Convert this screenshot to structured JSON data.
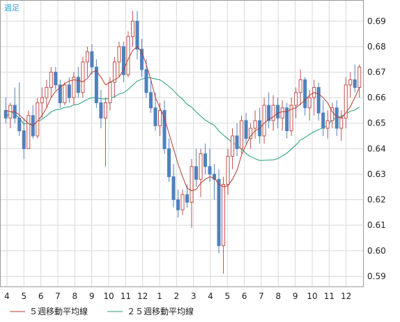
{
  "chart_data": {
    "type": "candlestick",
    "period_label": "週足",
    "y_ticks": [
      "0.69",
      "0.68",
      "0.67",
      "0.66",
      "0.65",
      "0.64",
      "0.63",
      "0.62",
      "0.61",
      "0.60",
      "0.59"
    ],
    "ylim": [
      0.586,
      0.698
    ],
    "x_ticks": [
      "4",
      "5",
      "6",
      "7",
      "8",
      "9",
      "10",
      "11",
      "12",
      "1",
      "2",
      "3",
      "4",
      "5",
      "6",
      "7",
      "8",
      "9",
      "10",
      "11",
      "12"
    ],
    "grid": true,
    "colors": {
      "up": "#c0504d",
      "down": "#4f81bd",
      "ma5": "#b8392f",
      "ma25": "#1f9e7a",
      "grid": "#d8d8d8",
      "axis": "#9a9a9a"
    },
    "legend": [
      {
        "label": "５週移動平均線",
        "color": "#b8392f"
      },
      {
        "label": "２５週移動平均線",
        "color": "#1f9e7a"
      }
    ],
    "candles": [
      [
        0.655,
        0.66,
        0.65,
        0.652
      ],
      [
        0.652,
        0.658,
        0.648,
        0.657
      ],
      [
        0.657,
        0.664,
        0.65,
        0.652
      ],
      [
        0.652,
        0.666,
        0.645,
        0.647
      ],
      [
        0.647,
        0.652,
        0.636,
        0.64
      ],
      [
        0.64,
        0.655,
        0.64,
        0.653
      ],
      [
        0.653,
        0.657,
        0.644,
        0.645
      ],
      [
        0.645,
        0.66,
        0.644,
        0.658
      ],
      [
        0.658,
        0.664,
        0.652,
        0.66
      ],
      [
        0.66,
        0.667,
        0.656,
        0.664
      ],
      [
        0.664,
        0.672,
        0.66,
        0.67
      ],
      [
        0.67,
        0.672,
        0.663,
        0.665
      ],
      [
        0.665,
        0.667,
        0.656,
        0.658
      ],
      [
        0.658,
        0.666,
        0.657,
        0.665
      ],
      [
        0.665,
        0.668,
        0.658,
        0.66
      ],
      [
        0.66,
        0.67,
        0.657,
        0.668
      ],
      [
        0.668,
        0.672,
        0.66,
        0.662
      ],
      [
        0.662,
        0.676,
        0.66,
        0.674
      ],
      [
        0.674,
        0.68,
        0.668,
        0.678
      ],
      [
        0.678,
        0.681,
        0.669,
        0.672
      ],
      [
        0.672,
        0.675,
        0.656,
        0.658
      ],
      [
        0.658,
        0.663,
        0.648,
        0.652
      ],
      [
        0.652,
        0.66,
        0.633,
        0.658
      ],
      [
        0.658,
        0.668,
        0.655,
        0.666
      ],
      [
        0.666,
        0.676,
        0.66,
        0.674
      ],
      [
        0.674,
        0.682,
        0.668,
        0.68
      ],
      [
        0.68,
        0.682,
        0.666,
        0.669
      ],
      [
        0.669,
        0.686,
        0.668,
        0.684
      ],
      [
        0.684,
        0.694,
        0.68,
        0.69
      ],
      [
        0.69,
        0.694,
        0.675,
        0.679
      ],
      [
        0.679,
        0.683,
        0.668,
        0.671
      ],
      [
        0.671,
        0.675,
        0.66,
        0.662
      ],
      [
        0.662,
        0.667,
        0.654,
        0.656
      ],
      [
        0.656,
        0.662,
        0.647,
        0.649
      ],
      [
        0.649,
        0.658,
        0.645,
        0.655
      ],
      [
        0.655,
        0.659,
        0.638,
        0.64
      ],
      [
        0.64,
        0.644,
        0.627,
        0.629
      ],
      [
        0.629,
        0.634,
        0.617,
        0.62
      ],
      [
        0.62,
        0.624,
        0.613,
        0.616
      ],
      [
        0.616,
        0.624,
        0.614,
        0.622
      ],
      [
        0.622,
        0.626,
        0.617,
        0.619
      ],
      [
        0.619,
        0.636,
        0.609,
        0.633
      ],
      [
        0.633,
        0.64,
        0.625,
        0.628
      ],
      [
        0.628,
        0.64,
        0.621,
        0.638
      ],
      [
        0.638,
        0.642,
        0.63,
        0.633
      ],
      [
        0.633,
        0.64,
        0.627,
        0.63
      ],
      [
        0.63,
        0.634,
        0.62,
        0.628
      ],
      [
        0.628,
        0.632,
        0.599,
        0.602
      ],
      [
        0.602,
        0.629,
        0.591,
        0.626
      ],
      [
        0.626,
        0.64,
        0.622,
        0.637
      ],
      [
        0.637,
        0.648,
        0.632,
        0.645
      ],
      [
        0.645,
        0.65,
        0.637,
        0.64
      ],
      [
        0.64,
        0.653,
        0.638,
        0.651
      ],
      [
        0.651,
        0.654,
        0.642,
        0.644
      ],
      [
        0.644,
        0.65,
        0.64,
        0.648
      ],
      [
        0.648,
        0.655,
        0.644,
        0.651
      ],
      [
        0.651,
        0.656,
        0.642,
        0.645
      ],
      [
        0.645,
        0.66,
        0.642,
        0.657
      ],
      [
        0.657,
        0.662,
        0.648,
        0.651
      ],
      [
        0.651,
        0.661,
        0.647,
        0.657
      ],
      [
        0.657,
        0.66,
        0.648,
        0.652
      ],
      [
        0.652,
        0.659,
        0.647,
        0.656
      ],
      [
        0.656,
        0.658,
        0.644,
        0.647
      ],
      [
        0.647,
        0.66,
        0.645,
        0.657
      ],
      [
        0.657,
        0.664,
        0.652,
        0.662
      ],
      [
        0.662,
        0.671,
        0.657,
        0.667
      ],
      [
        0.667,
        0.668,
        0.653,
        0.656
      ],
      [
        0.656,
        0.663,
        0.651,
        0.66
      ],
      [
        0.66,
        0.667,
        0.653,
        0.664
      ],
      [
        0.664,
        0.666,
        0.651,
        0.654
      ],
      [
        0.654,
        0.659,
        0.645,
        0.648
      ],
      [
        0.648,
        0.655,
        0.644,
        0.651
      ],
      [
        0.651,
        0.658,
        0.648,
        0.656
      ],
      [
        0.656,
        0.659,
        0.645,
        0.648
      ],
      [
        0.648,
        0.655,
        0.643,
        0.652
      ],
      [
        0.652,
        0.668,
        0.648,
        0.665
      ],
      [
        0.665,
        0.67,
        0.66,
        0.667
      ],
      [
        0.667,
        0.673,
        0.662,
        0.664
      ],
      [
        0.664,
        0.673,
        0.66,
        0.672
      ]
    ],
    "ma5": [
      0.655,
      0.6545,
      0.6545,
      0.6532,
      0.6516,
      0.6498,
      0.649,
      0.6508,
      0.653,
      0.656,
      0.66,
      0.6625,
      0.664,
      0.6655,
      0.6665,
      0.667,
      0.6668,
      0.6662,
      0.6675,
      0.67,
      0.6705,
      0.668,
      0.665,
      0.666,
      0.667,
      0.668,
      0.671,
      0.675,
      0.6785,
      0.68,
      0.678,
      0.673,
      0.667,
      0.66,
      0.656,
      0.652,
      0.646,
      0.64,
      0.634,
      0.629,
      0.6245,
      0.6235,
      0.624,
      0.6265,
      0.628,
      0.629,
      0.6285,
      0.626,
      0.625,
      0.6255,
      0.628,
      0.6315,
      0.6375,
      0.6415,
      0.645,
      0.647,
      0.648,
      0.65,
      0.6515,
      0.6525,
      0.654,
      0.6545,
      0.6545,
      0.6555,
      0.656,
      0.6575,
      0.659,
      0.661,
      0.662,
      0.6615,
      0.66,
      0.658,
      0.6545,
      0.6525,
      0.652,
      0.654,
      0.6565,
      0.66,
      0.664
    ]
  }
}
